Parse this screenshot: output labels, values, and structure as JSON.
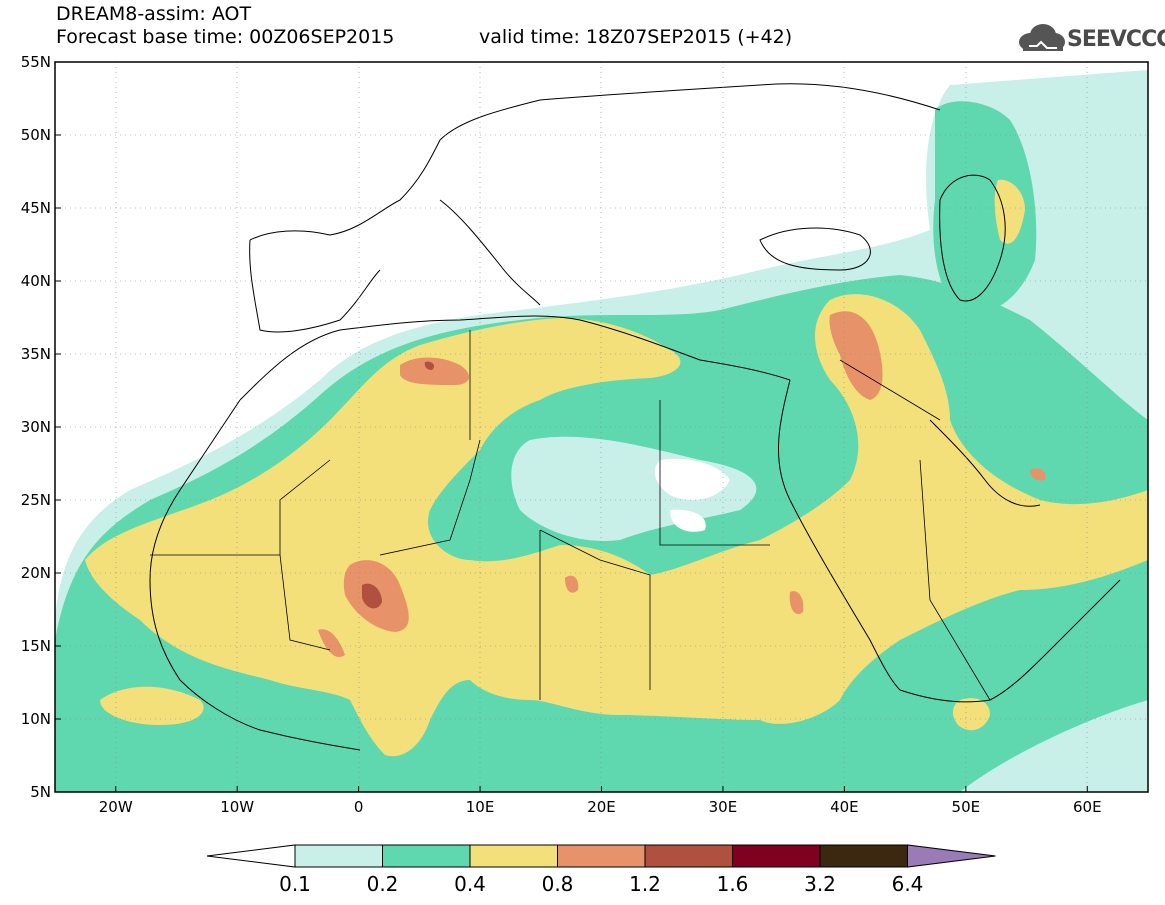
{
  "header": {
    "title_line1": "DREAM8-assim: AOT",
    "title_line2": "Forecast base time: 00Z06SEP2015",
    "valid_time": "valid time: 18Z07SEP2015 (+42)",
    "logo_text": "SEEVCCC",
    "logo_icon": "cloud-icon"
  },
  "map": {
    "lon_labels": [
      "20W",
      "10W",
      "0",
      "10E",
      "20E",
      "30E",
      "40E",
      "50E",
      "60E"
    ],
    "lat_labels": [
      "55N",
      "50N",
      "45N",
      "40N",
      "35N",
      "30N",
      "25N",
      "20N",
      "15N",
      "10N",
      "5N"
    ],
    "extent": {
      "lon": [
        -25,
        65
      ],
      "lat": [
        5,
        55
      ]
    }
  },
  "colorbar": {
    "labels": [
      "0.1",
      "0.2",
      "0.4",
      "0.8",
      "1.2",
      "1.6",
      "3.2",
      "6.4"
    ],
    "colors": [
      "#ffffff",
      "#c8f0e8",
      "#5fd8b0",
      "#f3e07a",
      "#e8926a",
      "#b0503e",
      "#800020",
      "#3c2810",
      "#9b7ab8"
    ]
  },
  "colors": {
    "c1": "#c8f0e8",
    "c2": "#5fd8b0",
    "c3": "#f3e07a",
    "c4": "#e8926a",
    "c5": "#b0503e"
  }
}
